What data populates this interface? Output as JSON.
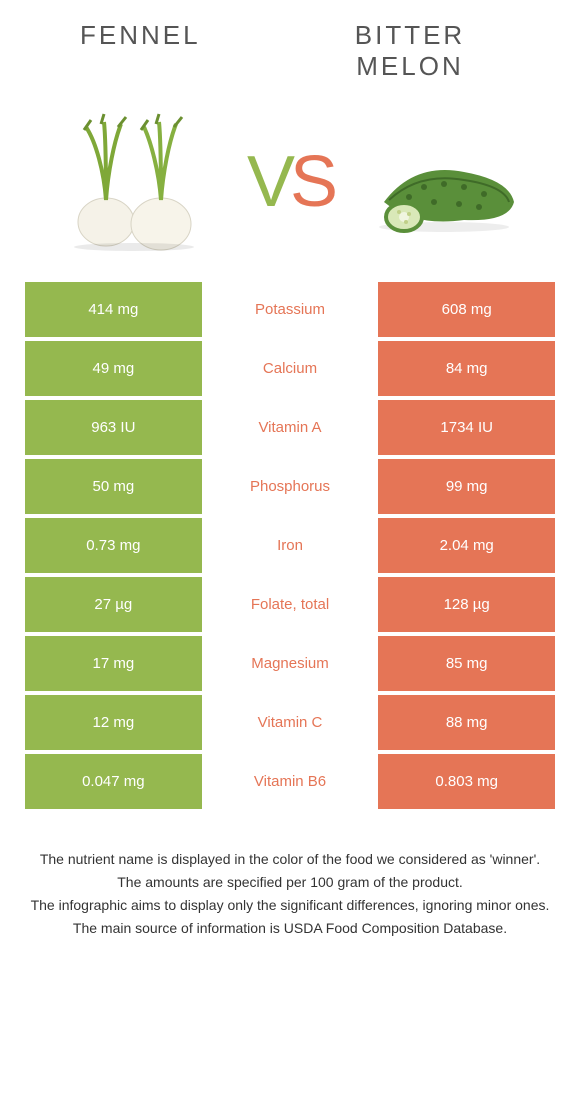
{
  "titles": {
    "left": "FENNEL",
    "right": "BITTER MELON"
  },
  "vs": {
    "v": "V",
    "s": "S"
  },
  "colors": {
    "left": "#95b84f",
    "right": "#e57556",
    "background": "#ffffff",
    "title_text": "#555555",
    "footer_text": "#333333"
  },
  "rows": [
    {
      "left": "414 mg",
      "label": "Potassium",
      "right": "608 mg",
      "winner": "right"
    },
    {
      "left": "49 mg",
      "label": "Calcium",
      "right": "84 mg",
      "winner": "right"
    },
    {
      "left": "963 IU",
      "label": "Vitamin A",
      "right": "1734 IU",
      "winner": "right"
    },
    {
      "left": "50 mg",
      "label": "Phosphorus",
      "right": "99 mg",
      "winner": "right"
    },
    {
      "left": "0.73 mg",
      "label": "Iron",
      "right": "2.04 mg",
      "winner": "right"
    },
    {
      "left": "27 µg",
      "label": "Folate, total",
      "right": "128 µg",
      "winner": "right"
    },
    {
      "left": "17 mg",
      "label": "Magnesium",
      "right": "85 mg",
      "winner": "right"
    },
    {
      "left": "12 mg",
      "label": "Vitamin C",
      "right": "88 mg",
      "winner": "right"
    },
    {
      "left": "0.047 mg",
      "label": "Vitamin B6",
      "right": "0.803 mg",
      "winner": "right"
    }
  ],
  "footer": [
    "The nutrient name is displayed in the color of the food we considered as 'winner'.",
    "The amounts are specified per 100 gram of the product.",
    "The infographic aims to display only the significant differences, ignoring minor ones.",
    "The main source of information is USDA Food Composition Database."
  ]
}
